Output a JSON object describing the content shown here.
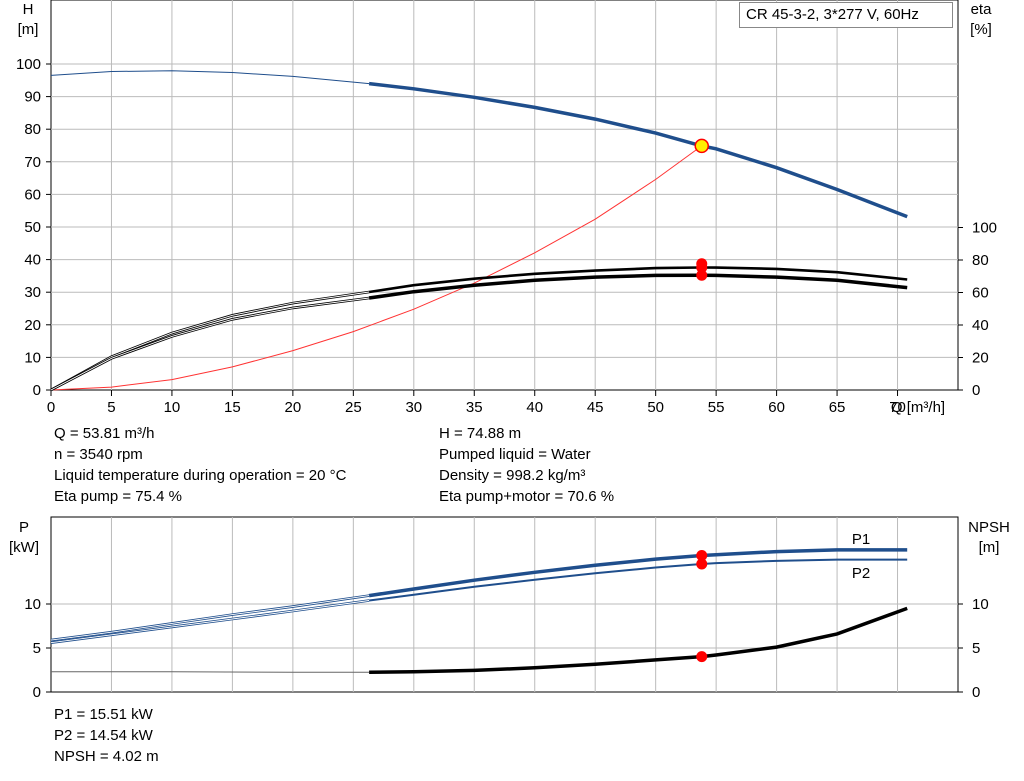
{
  "title": "CR 45-3-2, 3*277 V, 60Hz",
  "colors": {
    "head": "#1f4e8c",
    "eta": "#000000",
    "system": "#ff3333",
    "marker_red": "#ff0000",
    "marker_yellow": "#ffee00",
    "grid": "#bbbbbb"
  },
  "chart_data": [
    {
      "type": "line",
      "xlabel": "Q [m³/h]",
      "ylabel_left": "H\n[m]",
      "ylabel_right": "eta\n[%]",
      "xlim": [
        0,
        75
      ],
      "ylim_left": [
        0,
        100
      ],
      "ylim_right_eta": [
        0,
        100
      ],
      "x_ticks": [
        0,
        5,
        10,
        15,
        20,
        25,
        30,
        35,
        40,
        45,
        50,
        55,
        60,
        65,
        70
      ],
      "y_ticks_left": [
        0,
        10,
        20,
        30,
        40,
        50,
        60,
        70,
        80,
        90,
        100
      ],
      "y_ticks_right": [
        0,
        20,
        40,
        60,
        80,
        100
      ],
      "grid": true,
      "series": [
        {
          "x": [
            0,
            5,
            10,
            15,
            20,
            26.3,
            30,
            35,
            40,
            45,
            50,
            53.81,
            55,
            60,
            65,
            70.8
          ],
          "values": [
            96.5,
            97.7,
            97.9,
            97.4,
            96.2,
            94,
            92.4,
            89.8,
            86.7,
            83.1,
            78.8,
            74.88,
            74,
            68.2,
            61.5,
            53.2
          ]
        },
        {
          "x": [
            0,
            5,
            10,
            15,
            20,
            26.3,
            30,
            35,
            40,
            45,
            50,
            53.81,
            55,
            60,
            65,
            70.8
          ],
          "values": [
            0,
            20.5,
            35,
            46,
            53.5,
            60.3,
            64.5,
            68.5,
            71.5,
            73.5,
            75,
            75.4,
            75.3,
            74.5,
            72.5,
            68
          ]
        },
        {
          "x": [
            0,
            5,
            10,
            15,
            20,
            26.3,
            30,
            35,
            40,
            45,
            50,
            53.81,
            55,
            60,
            65,
            70.8
          ],
          "values": [
            0,
            19.5,
            33,
            43.5,
            50.5,
            56.6,
            60.5,
            64.5,
            67.5,
            69.5,
            70.5,
            70.6,
            70.5,
            69.5,
            67.5,
            63
          ]
        },
        {
          "x": [
            0,
            5,
            10,
            15,
            20,
            25,
            30,
            35,
            40,
            45,
            50,
            53.81
          ],
          "values": [
            0,
            0.9,
            3.2,
            7.1,
            12.1,
            17.9,
            24.8,
            32.8,
            42.1,
            52.4,
            64.6,
            74.88
          ]
        }
      ]
    },
    {
      "type": "line",
      "ylabel_left": "P\n[kW]",
      "ylabel_right": "NPSH\n[m]",
      "xlim": [
        0,
        75
      ],
      "ylim_left": [
        0,
        18
      ],
      "ylim_right": [
        0,
        18
      ],
      "y_ticks_left": [
        0,
        5,
        10
      ],
      "y_ticks_right": [
        0,
        5,
        10
      ],
      "grid": true,
      "series": [
        {
          "name": "P1",
          "x": [
            0,
            5,
            10,
            15,
            20,
            26.3,
            30,
            35,
            40,
            45,
            50,
            53.81,
            55,
            60,
            65,
            70.8
          ],
          "values": [
            5.9,
            6.8,
            7.8,
            8.8,
            9.7,
            10.95,
            11.7,
            12.7,
            13.6,
            14.4,
            15.1,
            15.51,
            15.6,
            15.95,
            16.15,
            16.15
          ]
        },
        {
          "name": "P2",
          "x": [
            0,
            5,
            10,
            15,
            20,
            26.3,
            30,
            35,
            40,
            45,
            50,
            53.81,
            55,
            60,
            65,
            70.8
          ],
          "values": [
            5.6,
            6.5,
            7.4,
            8.3,
            9.2,
            10.4,
            11.05,
            11.95,
            12.75,
            13.5,
            14.15,
            14.54,
            14.65,
            14.9,
            15.05,
            15.05
          ]
        },
        {
          "x": [
            0,
            10,
            20,
            26.3,
            30,
            35,
            40,
            45,
            50,
            53.81,
            55,
            60,
            65,
            70.8
          ],
          "values": [
            2.3,
            2.3,
            2.25,
            2.25,
            2.3,
            2.45,
            2.75,
            3.15,
            3.65,
            4.02,
            4.2,
            5.1,
            6.6,
            9.5
          ]
        }
      ]
    }
  ],
  "info_top_left": [
    "Q = 53.81 m³/h",
    "n = 3540 rpm",
    "Liquid temperature during operation = 20 °C",
    "Eta pump = 75.4 %"
  ],
  "info_top_right": [
    "H = 74.88 m",
    "Pumped liquid = Water",
    "Density = 998.2 kg/m³",
    "Eta pump+motor = 70.6 %"
  ],
  "info_bottom_left": [
    "P1 = 15.51 kW",
    "P2 = 14.54 kW",
    "NPSH = 4.02 m"
  ],
  "operating_point": {
    "Q": 53.81
  }
}
